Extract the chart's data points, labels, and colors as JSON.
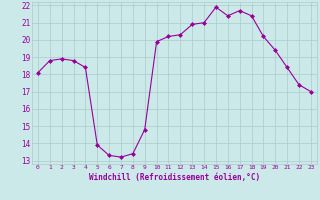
{
  "x": [
    0,
    1,
    2,
    3,
    4,
    5,
    6,
    7,
    8,
    9,
    10,
    11,
    12,
    13,
    14,
    15,
    16,
    17,
    18,
    19,
    20,
    21,
    22,
    23
  ],
  "y": [
    18.1,
    18.8,
    18.9,
    18.8,
    18.4,
    13.9,
    13.3,
    13.2,
    13.4,
    14.8,
    19.9,
    20.2,
    20.3,
    20.9,
    21.0,
    21.9,
    21.4,
    21.7,
    21.4,
    20.2,
    19.4,
    18.4,
    17.4,
    17.0
  ],
  "line_color": "#990099",
  "marker": "D",
  "marker_size": 2,
  "bg_color": "#cce9e9",
  "grid_color": "#aacccc",
  "xlabel": "Windchill (Refroidissement éolien,°C)",
  "xlabel_color": "#990099",
  "tick_color": "#990099",
  "ylim": [
    13,
    22
  ],
  "xlim": [
    -0.5,
    23.5
  ],
  "yticks": [
    13,
    14,
    15,
    16,
    17,
    18,
    19,
    20,
    21,
    22
  ],
  "xticks": [
    0,
    1,
    2,
    3,
    4,
    5,
    6,
    7,
    8,
    9,
    10,
    11,
    12,
    13,
    14,
    15,
    16,
    17,
    18,
    19,
    20,
    21,
    22,
    23
  ]
}
